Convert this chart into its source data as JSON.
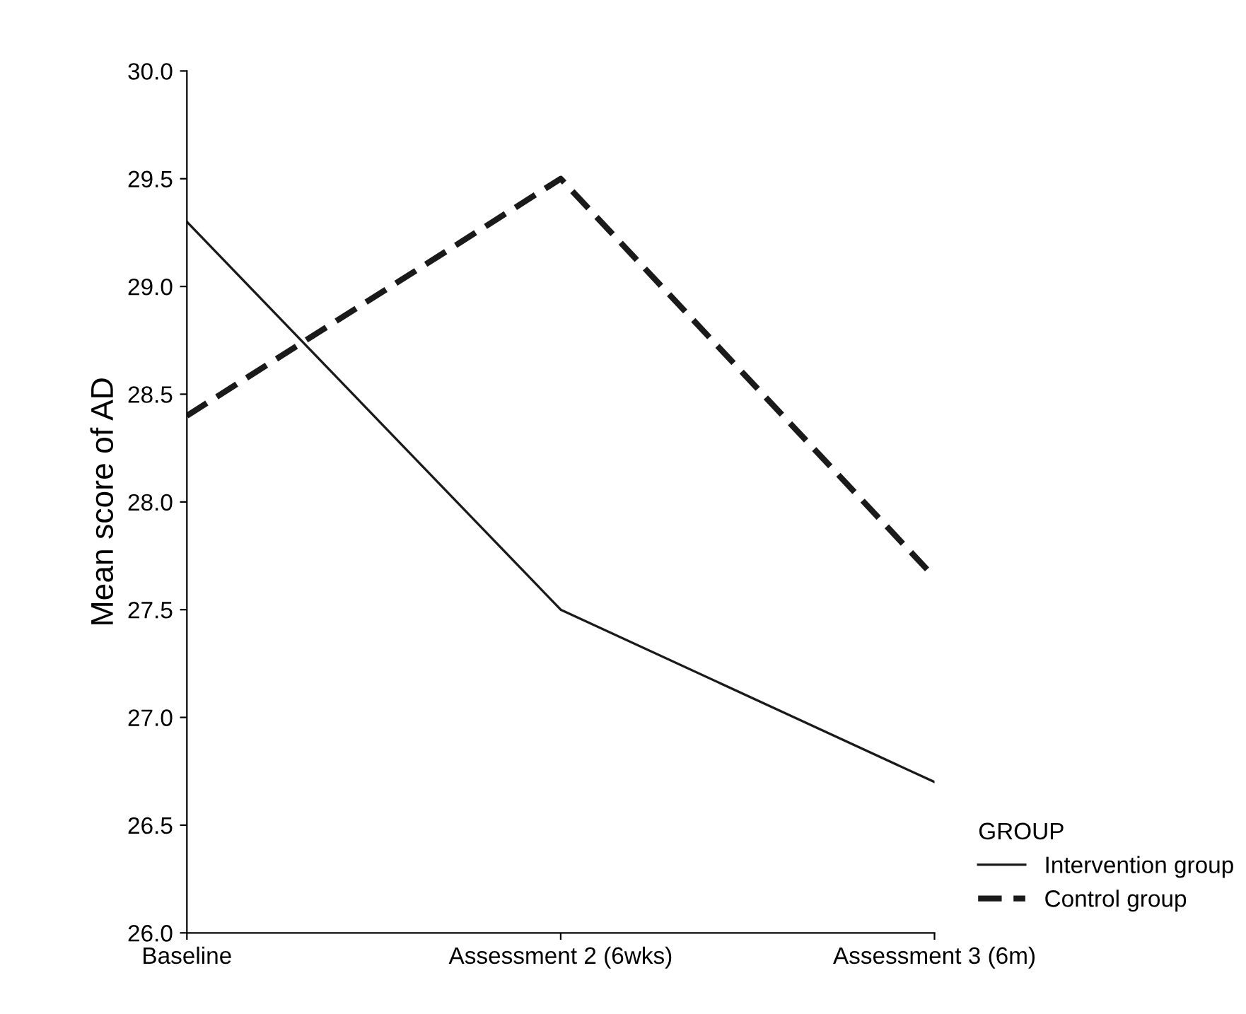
{
  "chart_data": {
    "type": "line",
    "ylabel": "Mean score of AD",
    "legend_title": "GROUP",
    "categories": [
      "Baseline",
      "Assessment 2 (6wks)",
      "Assessment 3 (6m)"
    ],
    "series": [
      {
        "name": "Intervention group",
        "color": "#1a1a1a",
        "values": [
          29.3,
          27.5,
          26.7
        ],
        "line_style": "solid"
      },
      {
        "name": "Control group",
        "color": "#1a1a1a",
        "values": [
          28.4,
          29.5,
          27.65
        ],
        "line_style": "dashed"
      }
    ],
    "ylim": [
      26.0,
      30.0
    ],
    "yticks": [
      {
        "value": 26.0,
        "label": "26.0"
      },
      {
        "value": 26.5,
        "label": "26.5"
      },
      {
        "value": 27.0,
        "label": "27.0"
      },
      {
        "value": 27.5,
        "label": "27.5"
      },
      {
        "value": 28.0,
        "label": "28.0"
      },
      {
        "value": 28.5,
        "label": "28.5"
      },
      {
        "value": 29.0,
        "label": "29.0"
      },
      {
        "value": 29.5,
        "label": "29.5"
      },
      {
        "value": 30.0,
        "label": "30.0"
      }
    ],
    "grid": false,
    "legend": "bottom right",
    "marker": "none"
  }
}
